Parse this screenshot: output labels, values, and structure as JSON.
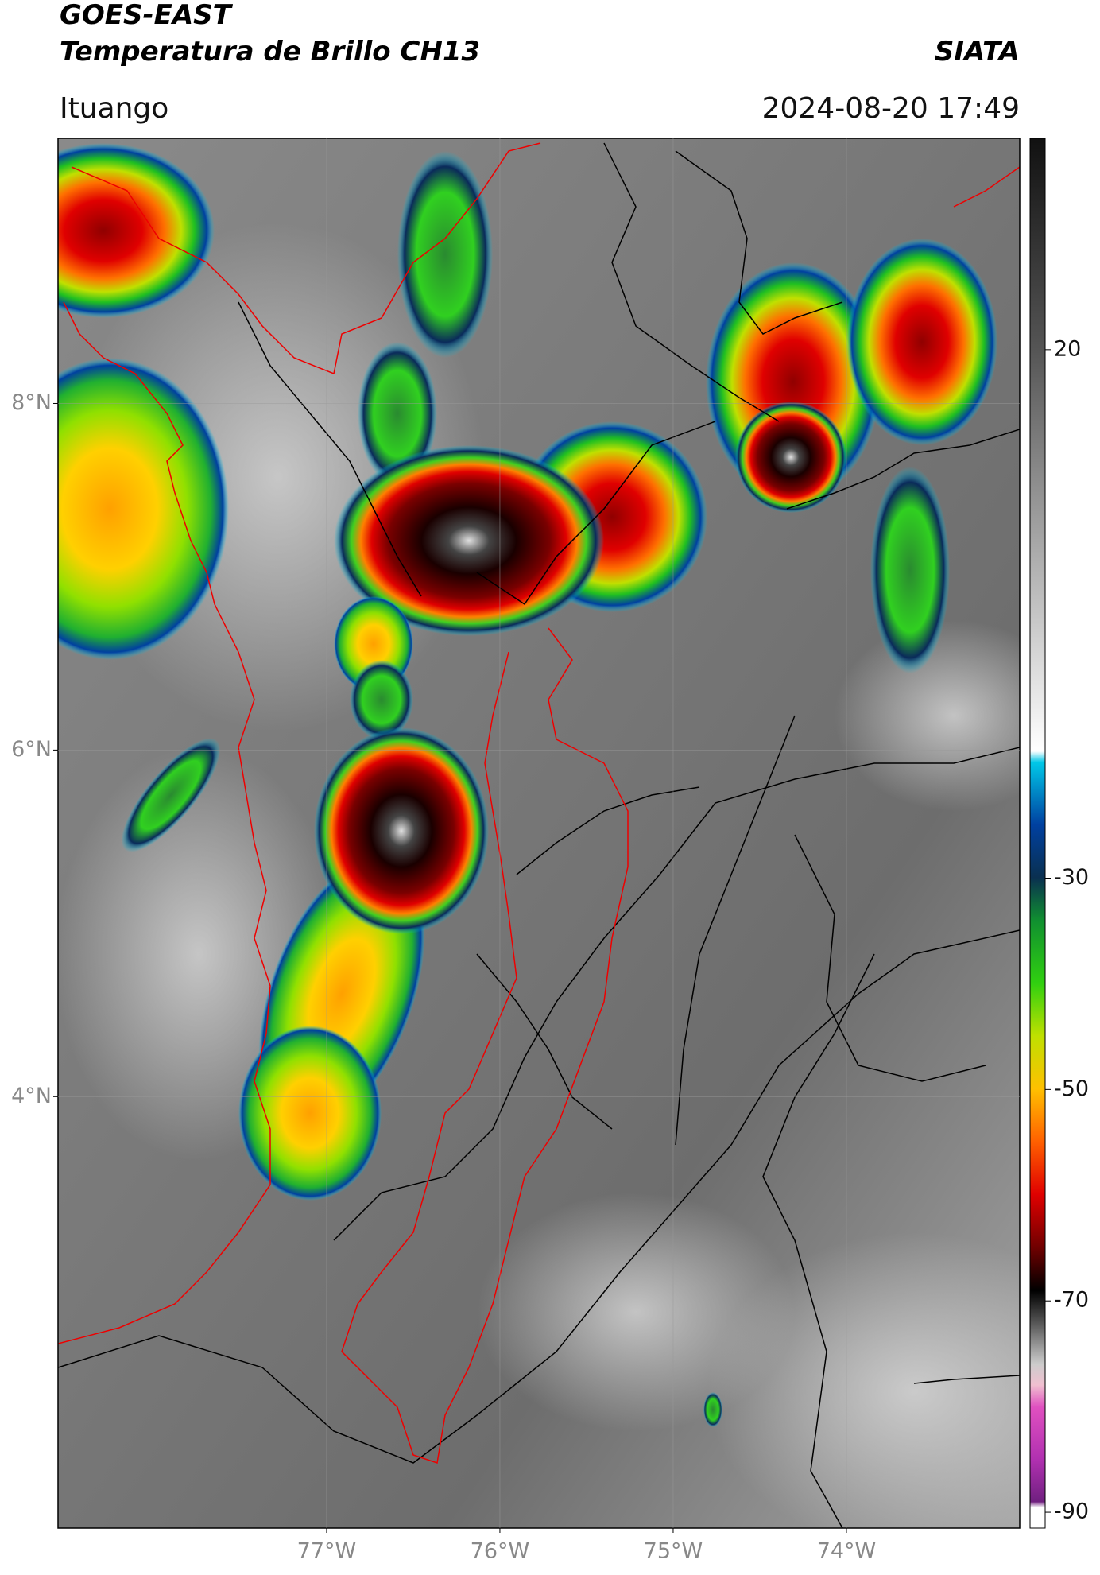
{
  "header": {
    "title": "GOES-EAST",
    "subtitle": "Temperatura de Brillo CH13",
    "agency": "SIATA",
    "location": "Ituango",
    "timestamp": "2024-08-20 17:49"
  },
  "map": {
    "lon_range": [
      -78.55,
      -73.0
    ],
    "lat_range": [
      1.51,
      9.53
    ],
    "lon_ticks": [
      {
        "value": -77,
        "label": "77°W"
      },
      {
        "value": -76,
        "label": "76°W"
      },
      {
        "value": -75,
        "label": "75°W"
      },
      {
        "value": -74,
        "label": "74°W"
      }
    ],
    "lat_ticks": [
      {
        "value": 8,
        "label": "8°N"
      },
      {
        "value": 6,
        "label": "6°N"
      },
      {
        "value": 4,
        "label": "4°N"
      }
    ]
  },
  "colorbar": {
    "range": [
      -91.5,
      40
    ],
    "ticks": [
      20,
      -30,
      -50,
      -70,
      -90
    ]
  }
}
